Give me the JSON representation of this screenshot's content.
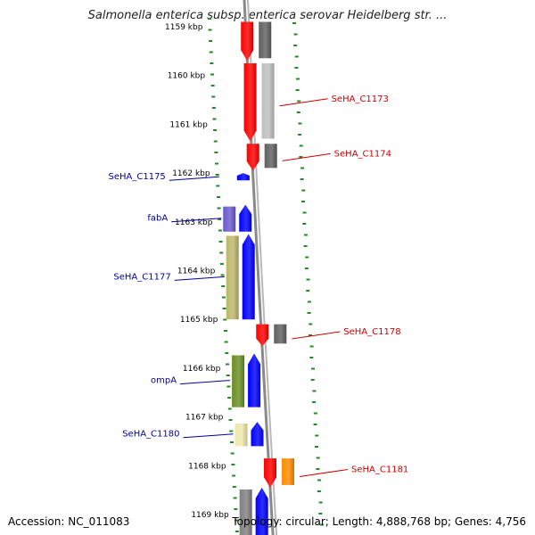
{
  "title": "Salmonella enterica subsp. enterica serovar Heidelberg str. ...",
  "footer": {
    "accession": "Accession: NC_011083",
    "summary": "Topology: circular; Length: 4,888,768 bp; Genes: 4,756"
  },
  "colors": {
    "forward_gene": "#0000ff",
    "reverse_gene": "#ff0000",
    "forward_label": "#000099",
    "reverse_label": "#cc0000",
    "scale_dots": "#228b22",
    "backbone": "#808080"
  },
  "ruler": [
    {
      "label": "1159 kbp",
      "kbp": 1159
    },
    {
      "label": "1160 kbp",
      "kbp": 1160
    },
    {
      "label": "1161 kbp",
      "kbp": 1161
    },
    {
      "label": "1162 kbp",
      "kbp": 1162
    },
    {
      "label": "1163 kbp",
      "kbp": 1163
    },
    {
      "label": "1164 kbp",
      "kbp": 1164
    },
    {
      "label": "1165 kbp",
      "kbp": 1165
    },
    {
      "label": "1166 kbp",
      "kbp": 1166
    },
    {
      "label": "1167 kbp",
      "kbp": 1167
    },
    {
      "label": "1168 kbp",
      "kbp": 1168
    },
    {
      "label": "1169 kbp",
      "kbp": 1169
    }
  ],
  "genes": [
    {
      "name": "",
      "strand": "reverse",
      "start_kbp": 1158.9,
      "end_kbp": 1159.7,
      "cds_color": "#ff0000",
      "feature_color": "#606060"
    },
    {
      "name": "SeHA_C1173",
      "strand": "reverse",
      "start_kbp": 1159.75,
      "end_kbp": 1161.35,
      "cds_color": "#ff0000",
      "feature_color": "#c0c0c0"
    },
    {
      "name": "SeHA_C1174",
      "strand": "reverse",
      "start_kbp": 1161.4,
      "end_kbp": 1161.95,
      "cds_color": "#ff0000",
      "feature_color": "#606060"
    },
    {
      "name": "SeHA_C1175",
      "strand": "forward",
      "start_kbp": 1162.0,
      "end_kbp": 1162.15,
      "cds_color": "#0000ff",
      "feature_color": ""
    },
    {
      "name": "fabA",
      "strand": "forward",
      "start_kbp": 1162.65,
      "end_kbp": 1163.2,
      "cds_color": "#0000ff",
      "feature_color": "#6a5acd"
    },
    {
      "name": "SeHA_C1177",
      "strand": "forward",
      "start_kbp": 1163.25,
      "end_kbp": 1165.0,
      "cds_color": "#0000ff",
      "feature_color": "#bdb76b"
    },
    {
      "name": "SeHA_C1178",
      "strand": "reverse",
      "start_kbp": 1165.1,
      "end_kbp": 1165.55,
      "cds_color": "#ff0000",
      "feature_color": "#606060"
    },
    {
      "name": "ompA",
      "strand": "forward",
      "start_kbp": 1165.7,
      "end_kbp": 1166.8,
      "cds_color": "#0000ff",
      "feature_color": "#6b8e23"
    },
    {
      "name": "SeHA_C1180",
      "strand": "forward",
      "start_kbp": 1167.1,
      "end_kbp": 1167.6,
      "cds_color": "#0000ff",
      "feature_color": "#eee8aa"
    },
    {
      "name": "SeHA_C1181",
      "strand": "reverse",
      "start_kbp": 1167.85,
      "end_kbp": 1168.45,
      "cds_color": "#ff0000",
      "feature_color": "#ff8c00"
    },
    {
      "name": "",
      "strand": "forward",
      "start_kbp": 1168.45,
      "end_kbp": 1169.5,
      "cds_color": "#0000ff",
      "feature_color": "#808080"
    }
  ]
}
